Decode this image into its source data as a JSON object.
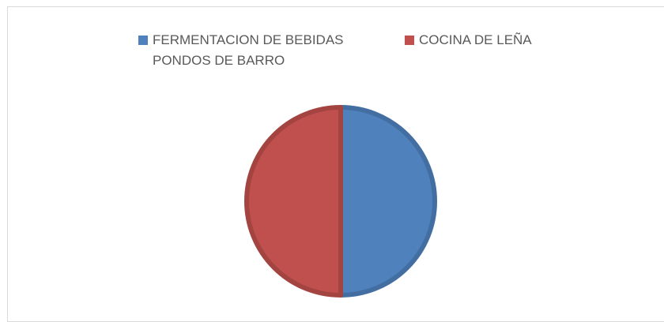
{
  "chart_data": {
    "type": "pie",
    "categories": [
      "FERMENTACION DE BEBIDAS PONDOS DE BARRO",
      "COCINA DE LEÑA"
    ],
    "values": [
      50,
      50
    ],
    "colors": [
      "#4f81bd",
      "#c0504d"
    ],
    "legend": "top"
  }
}
